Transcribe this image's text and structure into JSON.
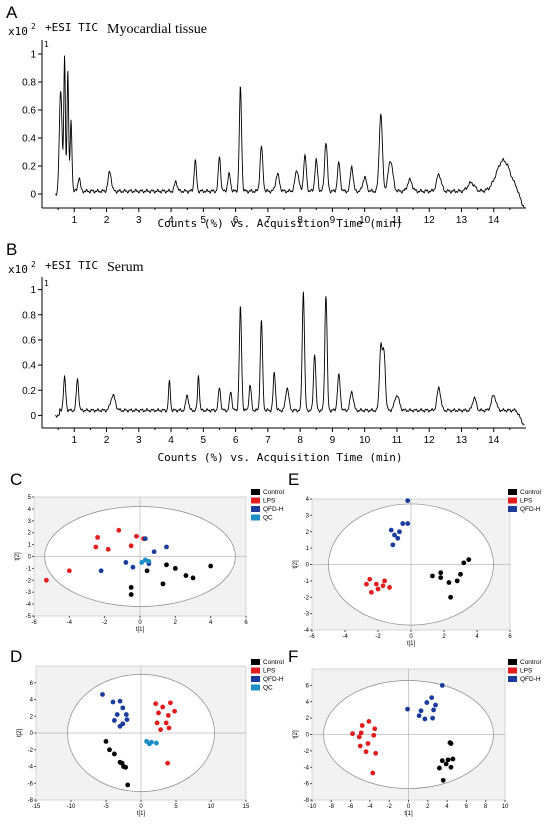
{
  "chart_data": [
    {
      "panel": "A",
      "type": "line",
      "scale_label": "x10",
      "scale_exponent": "2",
      "ion_label": "+ESI TIC",
      "sample_label": "Myocardial tissue",
      "xlabel": "Counts (%) vs. Acquisition Time (min)",
      "xlim": [
        0,
        15
      ],
      "ylim": [
        -0.1,
        1.1
      ],
      "x_ticks": [
        1,
        2,
        3,
        4,
        5,
        6,
        7,
        8,
        9,
        10,
        11,
        12,
        13,
        14
      ],
      "y_ticks": [
        0,
        0.2,
        0.4,
        0.6,
        0.8,
        1
      ],
      "y_tick_labels": [
        "0",
        "0.2",
        "0.4",
        "0.6",
        "0.8",
        "1"
      ],
      "corner_label": "1",
      "baseline": 0.02,
      "peaks": [
        [
          0.58,
          0.72,
          0.06
        ],
        [
          0.7,
          0.95,
          0.035
        ],
        [
          0.8,
          0.88,
          0.035
        ],
        [
          0.9,
          0.5,
          0.04
        ],
        [
          1.15,
          0.1,
          0.05
        ],
        [
          2.1,
          0.14,
          0.07
        ],
        [
          4.15,
          0.07,
          0.06
        ],
        [
          4.75,
          0.22,
          0.05
        ],
        [
          5.5,
          0.25,
          0.05
        ],
        [
          5.8,
          0.12,
          0.06
        ],
        [
          6.15,
          0.74,
          0.05
        ],
        [
          6.8,
          0.32,
          0.06
        ],
        [
          7.3,
          0.12,
          0.08
        ],
        [
          7.9,
          0.15,
          0.08
        ],
        [
          8.15,
          0.25,
          0.06
        ],
        [
          8.5,
          0.22,
          0.06
        ],
        [
          8.8,
          0.35,
          0.06
        ],
        [
          9.2,
          0.2,
          0.06
        ],
        [
          9.6,
          0.18,
          0.06
        ],
        [
          10.0,
          0.1,
          0.08
        ],
        [
          10.5,
          0.55,
          0.07
        ],
        [
          10.8,
          0.22,
          0.1
        ],
        [
          11.4,
          0.08,
          0.1
        ],
        [
          12.3,
          0.12,
          0.1
        ],
        [
          13.3,
          0.06,
          0.15
        ],
        [
          14.3,
          0.22,
          0.3
        ]
      ]
    },
    {
      "panel": "B",
      "type": "line",
      "scale_label": "x10",
      "scale_exponent": "2",
      "ion_label": "+ESI TIC",
      "sample_label": "Serum",
      "xlabel": "Counts (%) vs. Acquisition Time (min)",
      "xlim": [
        0,
        15
      ],
      "ylim": [
        -0.1,
        1.1
      ],
      "x_ticks": [
        1,
        2,
        3,
        4,
        5,
        6,
        7,
        8,
        9,
        10,
        11,
        12,
        13,
        14
      ],
      "y_ticks": [
        0,
        0.2,
        0.4,
        0.6,
        0.8,
        1
      ],
      "y_tick_labels": [
        "0",
        "0.2",
        "0.4",
        "0.6",
        "0.8",
        "1"
      ],
      "corner_label": "1",
      "baseline": 0.04,
      "peaks": [
        [
          0.7,
          0.26,
          0.05
        ],
        [
          1.1,
          0.25,
          0.05
        ],
        [
          2.2,
          0.12,
          0.1
        ],
        [
          3.95,
          0.23,
          0.04
        ],
        [
          4.5,
          0.12,
          0.06
        ],
        [
          4.85,
          0.28,
          0.04
        ],
        [
          5.5,
          0.18,
          0.05
        ],
        [
          5.85,
          0.15,
          0.05
        ],
        [
          6.15,
          0.82,
          0.05
        ],
        [
          6.45,
          0.2,
          0.05
        ],
        [
          6.8,
          0.72,
          0.05
        ],
        [
          7.2,
          0.3,
          0.05
        ],
        [
          7.6,
          0.18,
          0.07
        ],
        [
          8.1,
          0.95,
          0.05
        ],
        [
          8.45,
          0.45,
          0.05
        ],
        [
          8.8,
          0.92,
          0.05
        ],
        [
          9.2,
          0.28,
          0.06
        ],
        [
          9.6,
          0.15,
          0.07
        ],
        [
          10.5,
          0.5,
          0.06
        ],
        [
          10.6,
          0.45,
          0.06
        ],
        [
          11.0,
          0.12,
          0.1
        ],
        [
          12.3,
          0.18,
          0.08
        ],
        [
          13.4,
          0.1,
          0.08
        ],
        [
          14.0,
          0.12,
          0.1
        ]
      ]
    },
    {
      "panel": "C",
      "type": "scatter",
      "xlabel": "t[1]",
      "ylabel": "t[2]",
      "xlim": [
        -6,
        6
      ],
      "ylim": [
        -5,
        5
      ],
      "x_ticks": [
        -6,
        -4,
        -2,
        0,
        2,
        4,
        6
      ],
      "y_ticks": [
        -5,
        -4,
        -3,
        -2,
        -1,
        0,
        1,
        2,
        3,
        4,
        5
      ],
      "ellipse": {
        "rx": 5.4,
        "ry": 4.2
      },
      "legend": [
        "Control",
        "LPS",
        "QFD-H",
        "QC"
      ],
      "series": [
        {
          "name": "Control",
          "color": "#000000",
          "points": [
            [
              4.0,
              -0.8
            ],
            [
              2.6,
              -1.6
            ],
            [
              1.5,
              -0.7
            ],
            [
              1.3,
              -2.3
            ],
            [
              0.4,
              -1.2
            ],
            [
              -0.5,
              -2.6
            ],
            [
              -0.5,
              -3.2
            ],
            [
              3.0,
              -1.8
            ],
            [
              2.0,
              -1.0
            ]
          ]
        },
        {
          "name": "LPS",
          "color": "#e21d1d",
          "points": [
            [
              -5.3,
              -2.0
            ],
            [
              -4.0,
              -1.2
            ],
            [
              -2.4,
              1.6
            ],
            [
              -1.8,
              0.6
            ],
            [
              -1.2,
              2.2
            ],
            [
              -0.5,
              0.9
            ],
            [
              -0.2,
              1.7
            ],
            [
              0.2,
              1.5
            ],
            [
              -2.5,
              0.8
            ]
          ]
        },
        {
          "name": "QFD-H",
          "color": "#1a3c9c",
          "points": [
            [
              -2.2,
              -1.2
            ],
            [
              -0.8,
              -0.5
            ],
            [
              0.3,
              -0.3
            ],
            [
              0.8,
              0.4
            ],
            [
              1.5,
              0.8
            ],
            [
              -0.4,
              -0.9
            ],
            [
              0.5,
              -0.6
            ],
            [
              0.3,
              1.5
            ]
          ]
        },
        {
          "name": "QC",
          "color": "#1b8fc4",
          "points": [
            [
              0.1,
              -0.5
            ],
            [
              0.3,
              -0.3
            ],
            [
              0.5,
              -0.4
            ]
          ]
        }
      ]
    },
    {
      "panel": "D",
      "type": "scatter",
      "xlabel": "t[1]",
      "ylabel": "t[2]",
      "xlim": [
        -15,
        15
      ],
      "ylim": [
        -8,
        8
      ],
      "x_ticks": [
        -15,
        -10,
        -5,
        0,
        5,
        10,
        15
      ],
      "y_ticks": [
        -8,
        -6,
        -4,
        -2,
        0,
        2,
        4,
        6
      ],
      "ellipse": {
        "rx": 10.5,
        "ry": 7.0
      },
      "legend": [
        "Control",
        "LPS",
        "QFD-H",
        "QC"
      ],
      "series": [
        {
          "name": "Control",
          "color": "#000000",
          "points": [
            [
              -5,
              -1
            ],
            [
              -4.5,
              -2
            ],
            [
              -3.8,
              -2.5
            ],
            [
              -3,
              -3.5
            ],
            [
              -2.5,
              -4
            ],
            [
              -2.7,
              -3.6
            ],
            [
              -1.9,
              -6.2
            ],
            [
              -2.2,
              -4.1
            ]
          ]
        },
        {
          "name": "LPS",
          "color": "#e21d1d",
          "points": [
            [
              2.1,
              3.5
            ],
            [
              2.5,
              2.4
            ],
            [
              3.1,
              3.1
            ],
            [
              3.6,
              1.2
            ],
            [
              4.2,
              3.6
            ],
            [
              4.8,
              2.6
            ],
            [
              3.9,
              2.1
            ],
            [
              2.8,
              0.4
            ],
            [
              4.0,
              0.6
            ],
            [
              3.8,
              -3.6
            ],
            [
              2.3,
              1.2
            ]
          ]
        },
        {
          "name": "QFD-H",
          "color": "#1a3c9c",
          "points": [
            [
              -5.5,
              4.6
            ],
            [
              -4,
              3.7
            ],
            [
              -3,
              3.8
            ],
            [
              -2.6,
              3.0
            ],
            [
              -2.1,
              2.2
            ],
            [
              -3.4,
              2.2
            ],
            [
              -3.8,
              1.5
            ],
            [
              -2.6,
              1.1
            ],
            [
              -2,
              1.6
            ],
            [
              -3,
              0.8
            ]
          ]
        },
        {
          "name": "QC",
          "color": "#1b8fc4",
          "points": [
            [
              0.8,
              -1.0
            ],
            [
              1.5,
              -1.1
            ],
            [
              2.2,
              -1.2
            ],
            [
              1.2,
              -1.3
            ]
          ]
        }
      ]
    },
    {
      "panel": "E",
      "type": "scatter",
      "xlabel": "t[1]",
      "ylabel": "t[2]",
      "xlim": [
        -6,
        6
      ],
      "ylim": [
        -4,
        4
      ],
      "x_ticks": [
        -6,
        -4,
        -2,
        0,
        2,
        4,
        6
      ],
      "y_ticks": [
        -4,
        -3,
        -2,
        -1,
        0,
        1,
        2,
        3,
        4
      ],
      "ellipse": {
        "rx": 5.0,
        "ry": 3.7
      },
      "legend": [
        "Control",
        "LPS",
        "QFD-H"
      ],
      "series": [
        {
          "name": "Control",
          "color": "#000000",
          "points": [
            [
              1.3,
              -0.7
            ],
            [
              1.8,
              -0.8
            ],
            [
              2.3,
              -1.1
            ],
            [
              2.8,
              -1.0
            ],
            [
              3.0,
              -0.6
            ],
            [
              3.2,
              0.1
            ],
            [
              3.5,
              0.3
            ],
            [
              2.4,
              -2.0
            ],
            [
              1.8,
              -0.5
            ]
          ]
        },
        {
          "name": "LPS",
          "color": "#e21d1d",
          "points": [
            [
              -2.7,
              -1.2
            ],
            [
              -2.4,
              -1.7
            ],
            [
              -2.1,
              -1.2
            ],
            [
              -1.6,
              -1.0
            ],
            [
              -1.3,
              -1.4
            ],
            [
              -2.0,
              -1.5
            ],
            [
              -2.5,
              -0.9
            ],
            [
              -1.7,
              -1.3
            ]
          ]
        },
        {
          "name": "QFD-H",
          "color": "#1a3c9c",
          "points": [
            [
              -0.2,
              3.9
            ],
            [
              -0.5,
              2.5
            ],
            [
              -0.2,
              2.5
            ],
            [
              -1.0,
              1.8
            ],
            [
              -1.2,
              2.1
            ],
            [
              -0.8,
              1.6
            ],
            [
              -1.1,
              1.2
            ],
            [
              -0.7,
              2.0
            ]
          ]
        }
      ]
    },
    {
      "panel": "F",
      "type": "scatter",
      "xlabel": "t[1]",
      "ylabel": "t[2]",
      "xlim": [
        -10,
        10
      ],
      "ylim": [
        -8,
        8
      ],
      "x_ticks": [
        -10,
        -8,
        -6,
        -4,
        -2,
        0,
        2,
        4,
        6,
        8,
        10
      ],
      "y_ticks": [
        -8,
        -6,
        -4,
        -2,
        0,
        2,
        4,
        6
      ],
      "ellipse": {
        "rx": 8.8,
        "ry": 6.6
      },
      "legend": [
        "Control",
        "LPS",
        "QFD-H"
      ],
      "series": [
        {
          "name": "Control",
          "color": "#000000",
          "points": [
            [
              4.3,
              -1.0
            ],
            [
              4.4,
              -1.1
            ],
            [
              4.6,
              -3.0
            ],
            [
              3.9,
              -3.6
            ],
            [
              4.4,
              -4.0
            ],
            [
              3.5,
              -3.2
            ],
            [
              3.2,
              -4.1
            ],
            [
              3.6,
              -5.6
            ],
            [
              4.1,
              -3.1
            ]
          ]
        },
        {
          "name": "LPS",
          "color": "#e21d1d",
          "points": [
            [
              -5.8,
              0.1
            ],
            [
              -4.8,
              1.1
            ],
            [
              -4.1,
              1.6
            ],
            [
              -3.5,
              0.7
            ],
            [
              -5.1,
              -0.3
            ],
            [
              -4.2,
              -1.1
            ],
            [
              -5.0,
              -1.4
            ],
            [
              -4.4,
              -2.1
            ],
            [
              -3.4,
              -2.3
            ],
            [
              -3.7,
              -4.7
            ],
            [
              -4.9,
              0.2
            ],
            [
              -3.6,
              -0.1
            ]
          ]
        },
        {
          "name": "QFD-H",
          "color": "#1a3c9c",
          "points": [
            [
              3.5,
              6.0
            ],
            [
              1.9,
              3.9
            ],
            [
              2.4,
              4.5
            ],
            [
              2.8,
              3.6
            ],
            [
              -0.1,
              3.1
            ],
            [
              1.3,
              2.9
            ],
            [
              1.1,
              2.3
            ],
            [
              2.5,
              2.0
            ],
            [
              1.7,
              1.9
            ],
            [
              2.6,
              3.0
            ]
          ]
        }
      ]
    }
  ]
}
